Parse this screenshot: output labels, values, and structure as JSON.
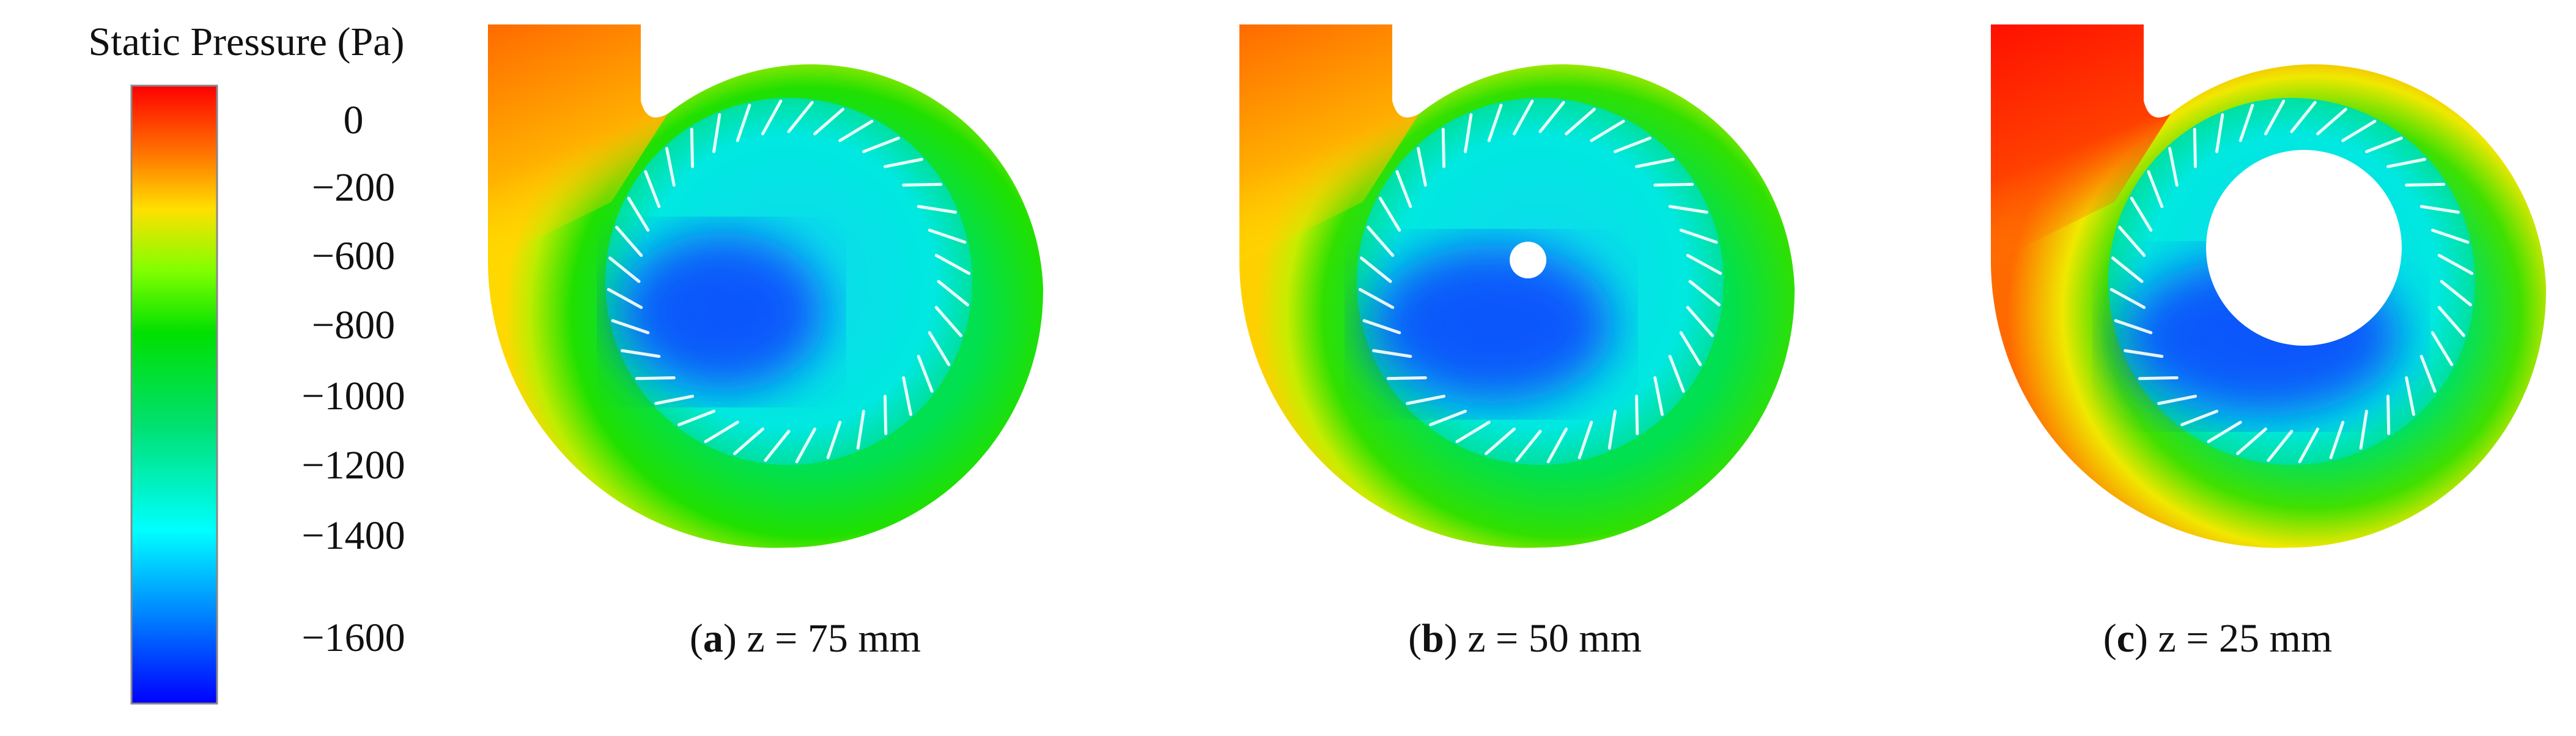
{
  "colorbar": {
    "title": "Static Pressure (Pa)",
    "labels": [
      "0",
      "−200",
      "−600",
      "−800",
      "−1000",
      "−1200",
      "−1400",
      "−1600"
    ]
  },
  "panels": [
    {
      "open": "(",
      "label": "a",
      "caption": ") z = 75 mm"
    },
    {
      "open": "(",
      "label": "b",
      "caption": ") z = 50 mm"
    },
    {
      "open": "(",
      "label": "c",
      "caption": ") z = 25 mm"
    }
  ]
}
